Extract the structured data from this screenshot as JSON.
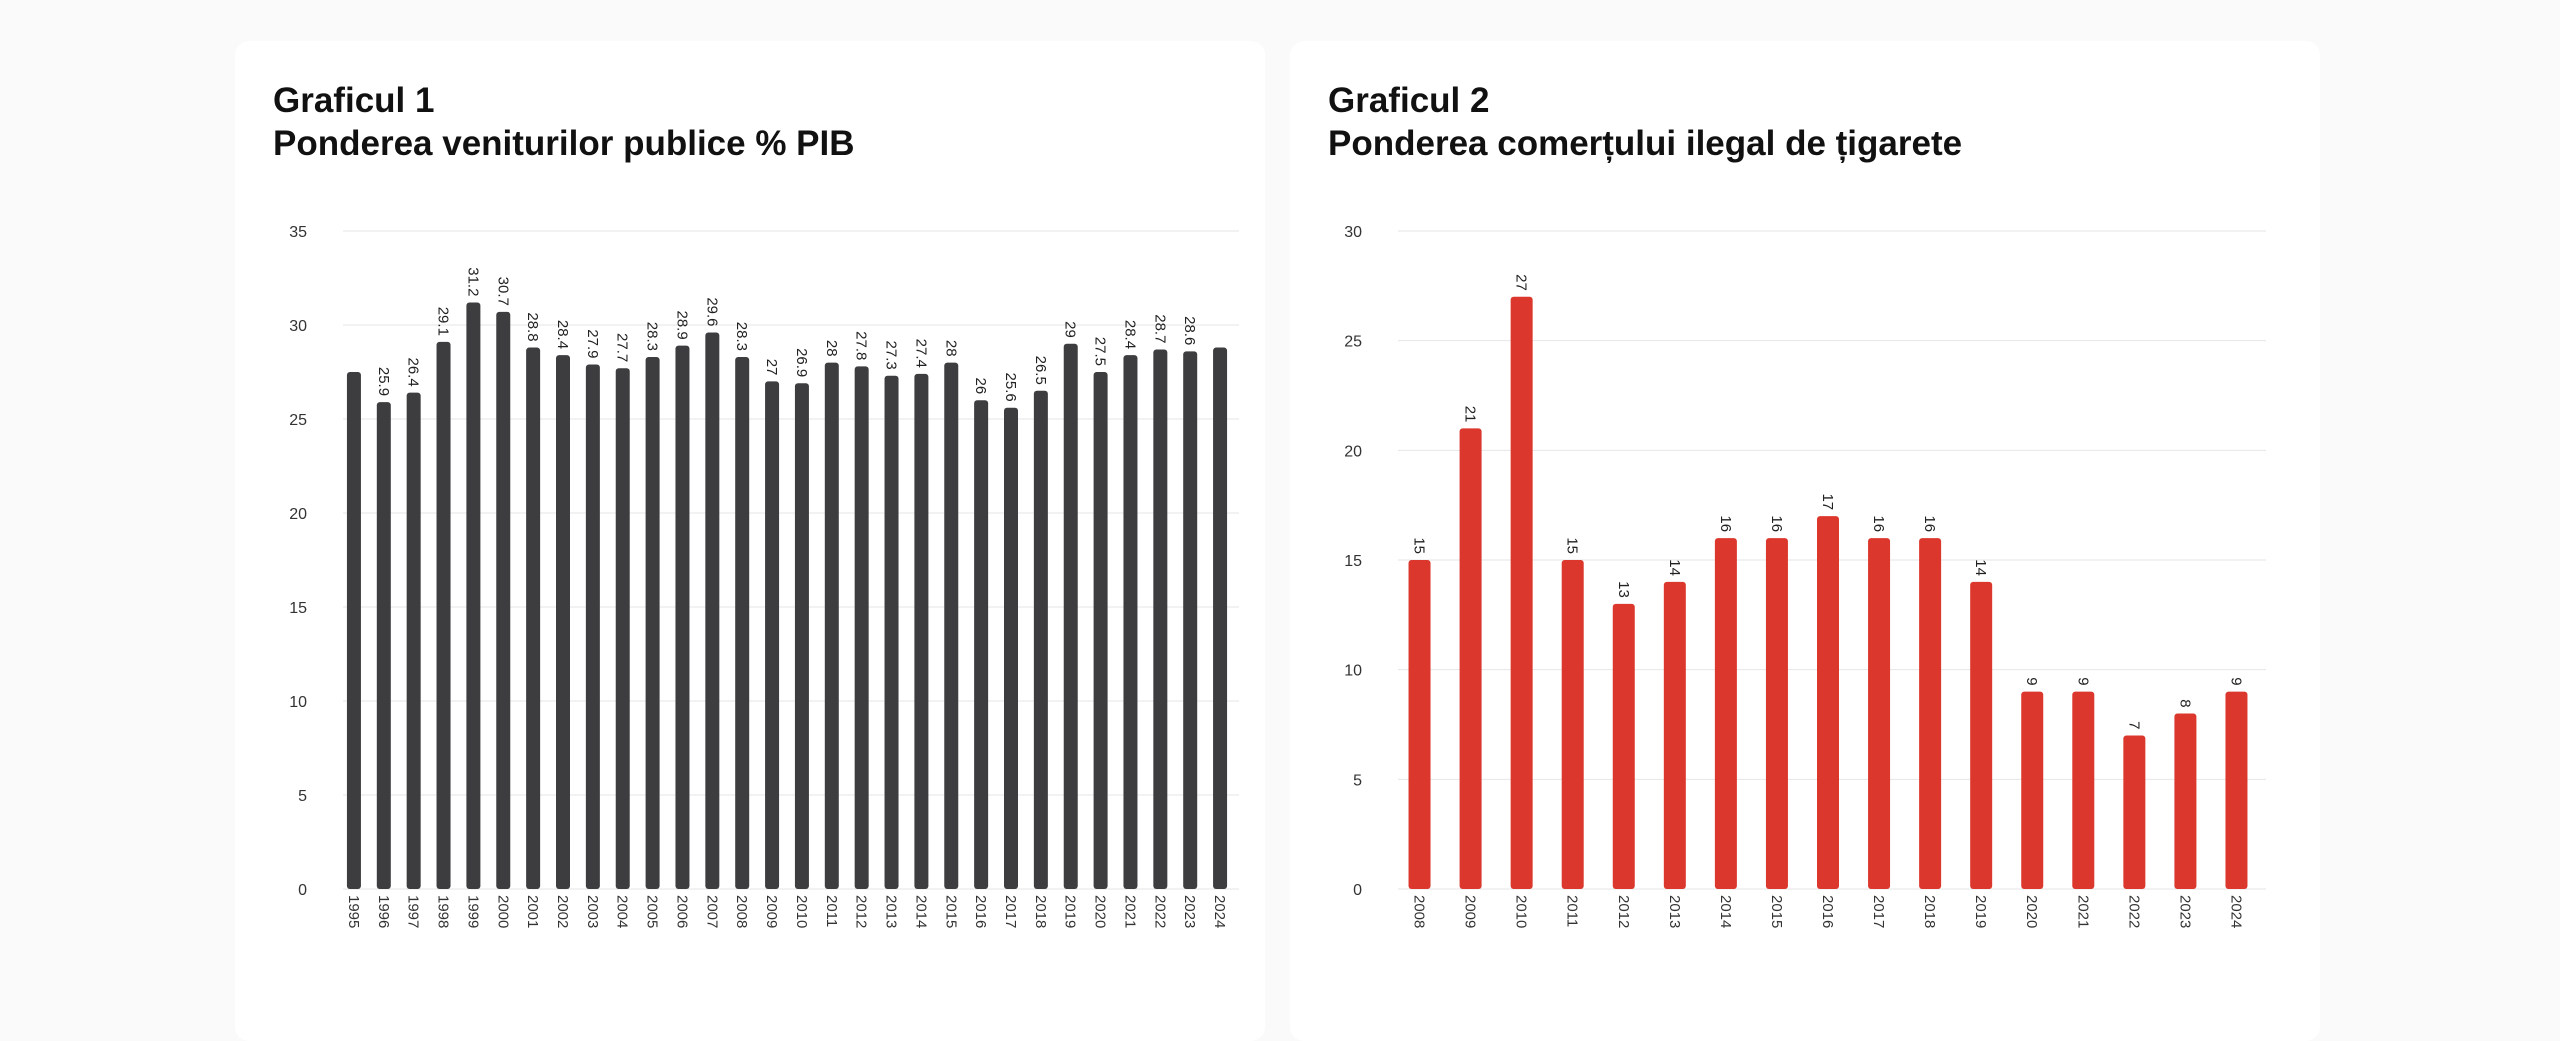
{
  "colors": {
    "page_background": "#fafafa",
    "card_background": "#ffffff",
    "chart1_bar": "#3d3d40",
    "chart2_bar": "#dc372c",
    "gridline": "#e6e6e6"
  },
  "chart_data": [
    {
      "type": "bar",
      "title": "Graficul 1",
      "subtitle": "Ponderea veniturilor publice % PIB",
      "xlabel": "",
      "ylabel": "",
      "ylim": [
        0,
        35
      ],
      "yticks": [
        "0",
        "5",
        "10",
        "15",
        "20",
        "25",
        "30",
        "35"
      ],
      "grid": true,
      "legend": "none",
      "categories": [
        "1995",
        "1996",
        "1997",
        "1998",
        "1999",
        "2000",
        "2001",
        "2002",
        "2003",
        "2004",
        "2005",
        "2006",
        "2007",
        "2008",
        "2009",
        "2010",
        "2011",
        "2012",
        "2013",
        "2014",
        "2015",
        "2016",
        "2017",
        "2018",
        "2019",
        "2020",
        "2021",
        "2022",
        "2023",
        "2024"
      ],
      "values": [
        27.5,
        25.9,
        26.4,
        29.1,
        31.2,
        30.7,
        28.8,
        28.4,
        27.9,
        27.7,
        28.3,
        28.9,
        29.6,
        28.3,
        27,
        26.9,
        28,
        27.8,
        27.3,
        27.4,
        28,
        26,
        25.6,
        26.5,
        29,
        27.5,
        28.4,
        28.7,
        28.6,
        28.8
      ],
      "data_labels": [
        "",
        "25.9",
        "26.4",
        "29.1",
        "31.2",
        "30.7",
        "28.8",
        "28.4",
        "27.9",
        "27.7",
        "28.3",
        "28.9",
        "29.6",
        "28.3",
        "27",
        "26.9",
        "28",
        "27.8",
        "27.3",
        "27.4",
        "28",
        "26",
        "25.6",
        "26.5",
        "29",
        "27.5",
        "28.4",
        "28.7",
        "28.6",
        ""
      ]
    },
    {
      "type": "bar",
      "title": "Graficul 2",
      "subtitle": "Ponderea comerțului ilegal de țigarete",
      "xlabel": "",
      "ylabel": "",
      "ylim": [
        0,
        30
      ],
      "yticks": [
        "0",
        "5",
        "10",
        "15",
        "20",
        "25",
        "30"
      ],
      "grid": true,
      "legend": "none",
      "categories": [
        "2008",
        "2009",
        "2010",
        "2011",
        "2012",
        "2013",
        "2014",
        "2015",
        "2016",
        "2017",
        "2018",
        "2019",
        "2020",
        "2021",
        "2022",
        "2023",
        "2024"
      ],
      "values": [
        15,
        21,
        27,
        15,
        13,
        14,
        16,
        16,
        17,
        16,
        16,
        14,
        9,
        9,
        7,
        8,
        9
      ],
      "data_labels": [
        "15",
        "21",
        "27",
        "15",
        "13",
        "14",
        "16",
        "16",
        "17",
        "16",
        "16",
        "14",
        "9",
        "9",
        "7",
        "8",
        "9"
      ]
    }
  ]
}
